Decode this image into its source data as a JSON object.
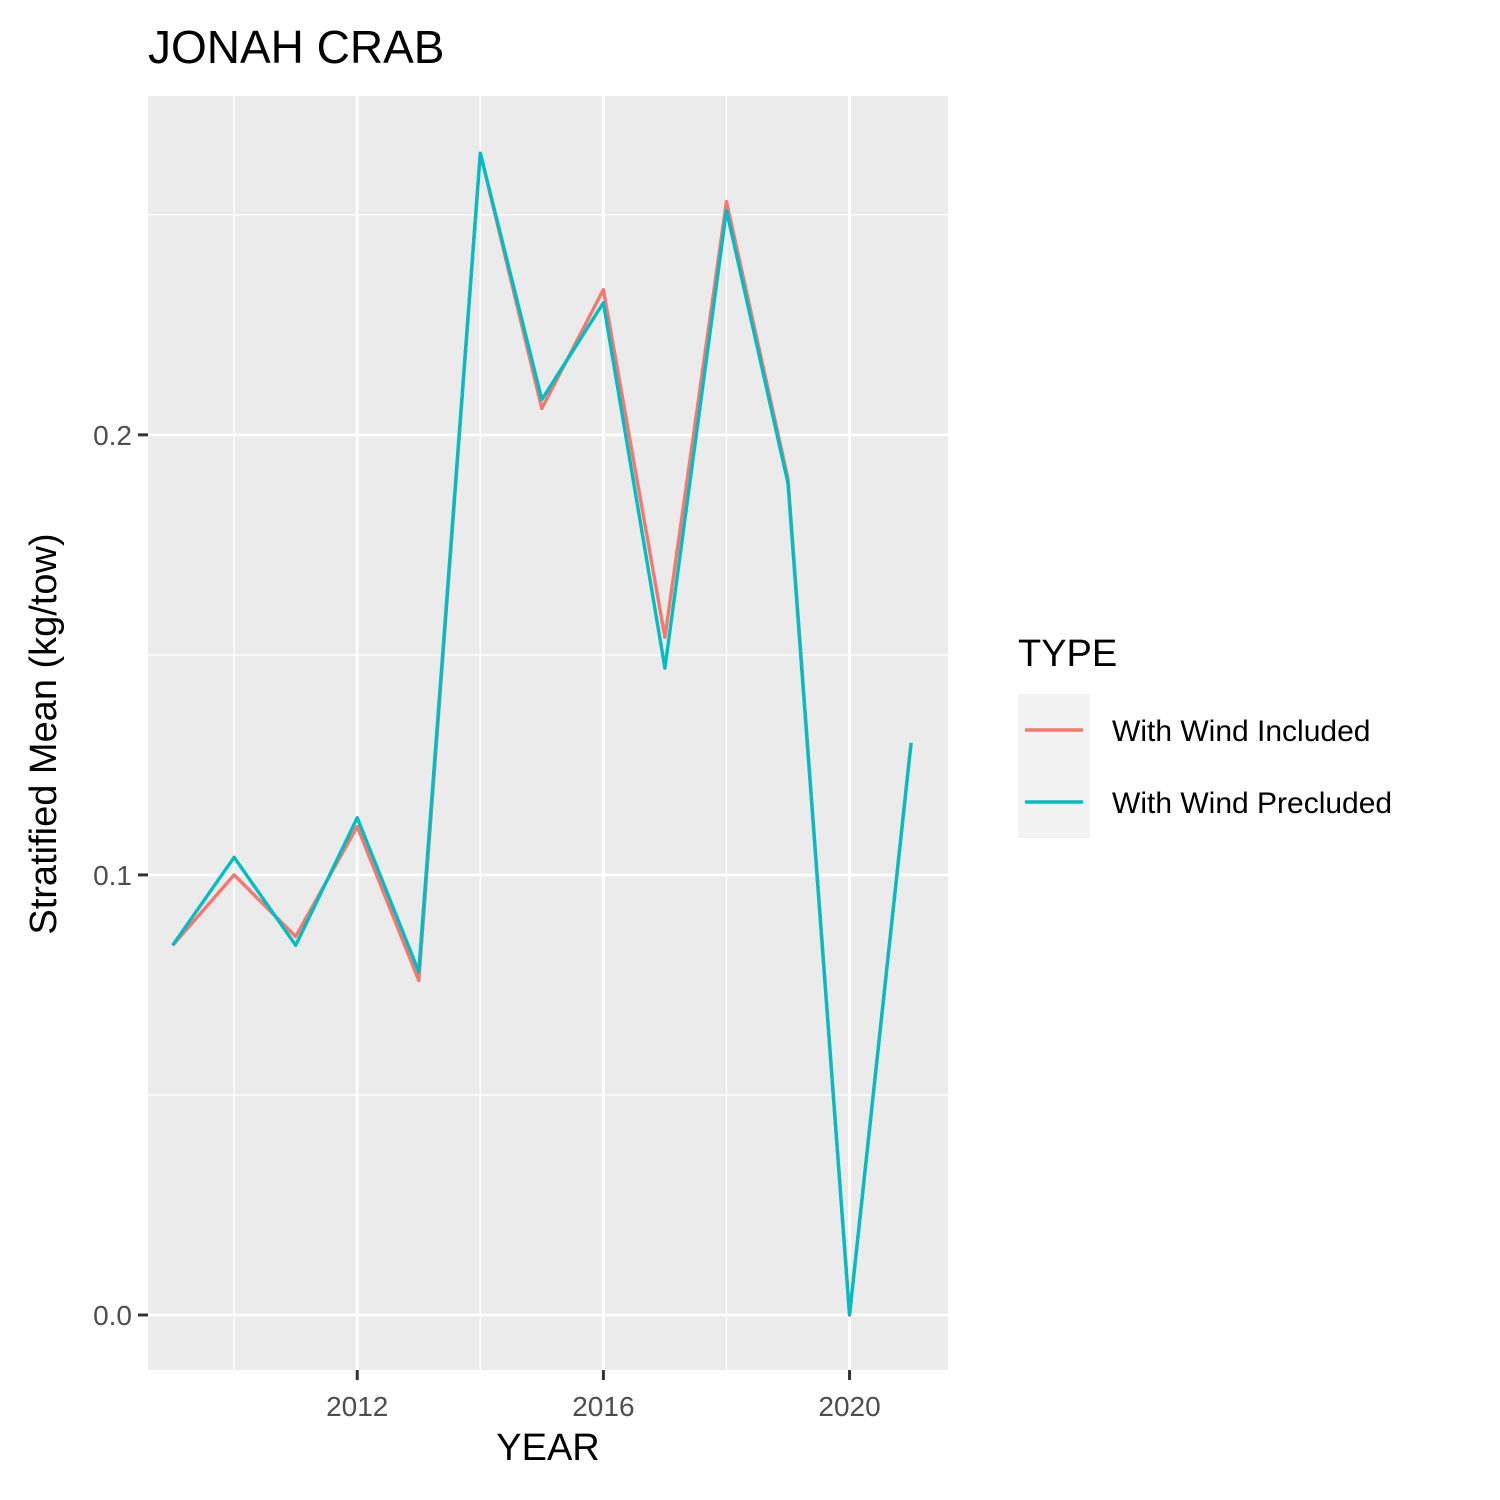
{
  "chart_data": {
    "type": "line",
    "title": "JONAH CRAB",
    "xlabel": "YEAR",
    "ylabel": "Stratified Mean (kg/tow)",
    "xlim": [
      2008.6,
      2021.6
    ],
    "ylim": [
      -0.0125,
      0.277
    ],
    "x_ticks": [
      2012,
      2016,
      2020
    ],
    "x_minor": [
      2010,
      2014,
      2018
    ],
    "y_ticks": [
      0.0,
      0.1,
      0.2
    ],
    "y_tick_labels": [
      "0.0",
      "0.1",
      "0.2"
    ],
    "y_minor": [
      0.05,
      0.15,
      0.25
    ],
    "grid": true,
    "x": [
      2009,
      2010,
      2011,
      2012,
      2013,
      2014,
      2015,
      2016,
      2017,
      2018,
      2019,
      2020,
      2021
    ],
    "series": [
      {
        "name": "With Wind Included",
        "color": "#F8766D",
        "values": [
          0.084,
          0.1,
          0.086,
          0.111,
          0.076,
          0.264,
          0.206,
          0.233,
          0.154,
          0.253,
          0.19,
          0.0,
          0.13
        ]
      },
      {
        "name": "With Wind Precluded",
        "color": "#00BFC4",
        "values": [
          0.084,
          0.104,
          0.084,
          0.113,
          0.078,
          0.264,
          0.208,
          0.23,
          0.147,
          0.251,
          0.189,
          0.0,
          0.13
        ]
      }
    ],
    "legend": {
      "title": "TYPE",
      "placement": "right"
    },
    "panel_color": "#EBEBEB",
    "grid_color": "#FFFFFF",
    "legend_key_color": "#F2F2F2"
  }
}
